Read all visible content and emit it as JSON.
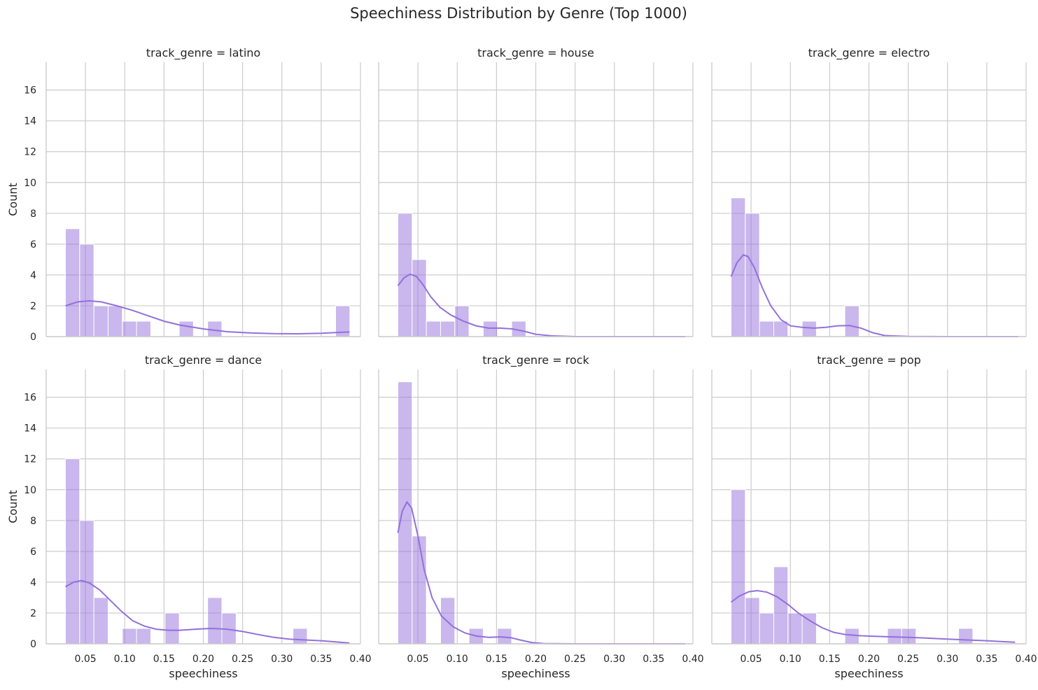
{
  "chart_data": {
    "type": "histogram-facet-grid",
    "title": "Speechiness Distribution by Genre (Top 1000)",
    "xlabel": "speechiness",
    "ylabel": "Count",
    "xlim": [
      0.0,
      0.4
    ],
    "ylim": [
      0,
      17.8
    ],
    "x_ticks": [
      0.05,
      0.1,
      0.15,
      0.2,
      0.25,
      0.3,
      0.35,
      0.4
    ],
    "x_tick_labels": [
      "0.05",
      "0.10",
      "0.15",
      "0.20",
      "0.25",
      "0.30",
      "0.35",
      "0.40"
    ],
    "y_ticks": [
      0,
      2,
      4,
      6,
      8,
      10,
      12,
      14,
      16
    ],
    "y_tick_labels": [
      "0",
      "2",
      "4",
      "6",
      "8",
      "10",
      "12",
      "14",
      "16"
    ],
    "bin_start": 0.0245,
    "bin_width": 0.0181,
    "color": "#9370db",
    "panels": [
      {
        "label": "track_genre = latino",
        "counts": [
          7,
          6,
          2,
          2,
          1,
          1,
          0,
          0,
          1,
          0,
          1,
          0,
          0,
          0,
          0,
          0,
          0,
          0,
          0,
          2
        ],
        "kde": [
          [
            0.0245,
            2.0
          ],
          [
            0.04,
            2.25
          ],
          [
            0.055,
            2.32
          ],
          [
            0.07,
            2.25
          ],
          [
            0.09,
            2.0
          ],
          [
            0.11,
            1.7
          ],
          [
            0.13,
            1.35
          ],
          [
            0.15,
            1.0
          ],
          [
            0.17,
            0.75
          ],
          [
            0.2,
            0.5
          ],
          [
            0.23,
            0.32
          ],
          [
            0.26,
            0.24
          ],
          [
            0.29,
            0.19
          ],
          [
            0.32,
            0.18
          ],
          [
            0.35,
            0.22
          ],
          [
            0.37,
            0.27
          ],
          [
            0.386,
            0.3
          ]
        ]
      },
      {
        "label": "track_genre = house",
        "counts": [
          8,
          5,
          1,
          1,
          2,
          0,
          1,
          0,
          1,
          0,
          0,
          0,
          0,
          0,
          0,
          0,
          0,
          0,
          0,
          0
        ],
        "kde": [
          [
            0.0245,
            3.3
          ],
          [
            0.032,
            3.8
          ],
          [
            0.04,
            4.05
          ],
          [
            0.048,
            3.9
          ],
          [
            0.056,
            3.4
          ],
          [
            0.066,
            2.6
          ],
          [
            0.078,
            1.9
          ],
          [
            0.092,
            1.4
          ],
          [
            0.108,
            1.0
          ],
          [
            0.124,
            0.7
          ],
          [
            0.14,
            0.55
          ],
          [
            0.155,
            0.55
          ],
          [
            0.17,
            0.5
          ],
          [
            0.185,
            0.35
          ],
          [
            0.2,
            0.15
          ],
          [
            0.22,
            0.05
          ],
          [
            0.25,
            0.0
          ],
          [
            0.3,
            0.0
          ],
          [
            0.35,
            0.0
          ],
          [
            0.39,
            0.0
          ]
        ]
      },
      {
        "label": "track_genre = electro",
        "counts": [
          9,
          8,
          1,
          1,
          0,
          1,
          0,
          0,
          2,
          0,
          0,
          0,
          0,
          0,
          0,
          0,
          0,
          0,
          0,
          0
        ],
        "kde": [
          [
            0.0245,
            3.9
          ],
          [
            0.032,
            4.8
          ],
          [
            0.04,
            5.3
          ],
          [
            0.046,
            5.2
          ],
          [
            0.054,
            4.5
          ],
          [
            0.064,
            3.2
          ],
          [
            0.075,
            2.0
          ],
          [
            0.088,
            1.1
          ],
          [
            0.1,
            0.7
          ],
          [
            0.115,
            0.6
          ],
          [
            0.13,
            0.55
          ],
          [
            0.145,
            0.6
          ],
          [
            0.16,
            0.7
          ],
          [
            0.175,
            0.72
          ],
          [
            0.19,
            0.55
          ],
          [
            0.205,
            0.25
          ],
          [
            0.22,
            0.07
          ],
          [
            0.25,
            0.01
          ],
          [
            0.3,
            0.0
          ],
          [
            0.39,
            0.0
          ]
        ]
      },
      {
        "label": "track_genre = dance",
        "counts": [
          12,
          8,
          3,
          0,
          1,
          1,
          0,
          2,
          0,
          0,
          3,
          2,
          0,
          0,
          0,
          0,
          1,
          0,
          0,
          0
        ],
        "kde": [
          [
            0.0245,
            3.7
          ],
          [
            0.035,
            4.0
          ],
          [
            0.045,
            4.1
          ],
          [
            0.055,
            3.95
          ],
          [
            0.068,
            3.5
          ],
          [
            0.082,
            2.8
          ],
          [
            0.096,
            2.1
          ],
          [
            0.11,
            1.5
          ],
          [
            0.125,
            1.15
          ],
          [
            0.14,
            0.95
          ],
          [
            0.155,
            0.88
          ],
          [
            0.17,
            0.88
          ],
          [
            0.19,
            0.95
          ],
          [
            0.21,
            1.0
          ],
          [
            0.23,
            0.95
          ],
          [
            0.25,
            0.8
          ],
          [
            0.27,
            0.6
          ],
          [
            0.29,
            0.42
          ],
          [
            0.31,
            0.3
          ],
          [
            0.33,
            0.25
          ],
          [
            0.35,
            0.2
          ],
          [
            0.37,
            0.12
          ],
          [
            0.386,
            0.05
          ]
        ]
      },
      {
        "label": "track_genre = rock",
        "counts": [
          17,
          7,
          0,
          3,
          0,
          1,
          0,
          1,
          0,
          0,
          0,
          0,
          0,
          0,
          0,
          0,
          0,
          0,
          0,
          0
        ],
        "kde": [
          [
            0.0245,
            7.2
          ],
          [
            0.03,
            8.6
          ],
          [
            0.036,
            9.2
          ],
          [
            0.042,
            8.8
          ],
          [
            0.05,
            7.0
          ],
          [
            0.058,
            4.8
          ],
          [
            0.068,
            3.0
          ],
          [
            0.08,
            1.8
          ],
          [
            0.095,
            1.1
          ],
          [
            0.11,
            0.7
          ],
          [
            0.125,
            0.5
          ],
          [
            0.14,
            0.42
          ],
          [
            0.155,
            0.45
          ],
          [
            0.168,
            0.4
          ],
          [
            0.18,
            0.25
          ],
          [
            0.195,
            0.08
          ],
          [
            0.21,
            0.02
          ],
          [
            0.25,
            0.0
          ],
          [
            0.3,
            0.0
          ],
          [
            0.39,
            0.0
          ]
        ]
      },
      {
        "label": "track_genre = pop",
        "counts": [
          10,
          3,
          2,
          5,
          2,
          2,
          0,
          0,
          1,
          0,
          0,
          1,
          1,
          0,
          0,
          0,
          1,
          0,
          0,
          0
        ],
        "kde": [
          [
            0.0245,
            2.7
          ],
          [
            0.035,
            3.1
          ],
          [
            0.047,
            3.38
          ],
          [
            0.058,
            3.45
          ],
          [
            0.07,
            3.35
          ],
          [
            0.083,
            3.05
          ],
          [
            0.097,
            2.55
          ],
          [
            0.11,
            2.0
          ],
          [
            0.125,
            1.5
          ],
          [
            0.14,
            1.05
          ],
          [
            0.155,
            0.75
          ],
          [
            0.17,
            0.6
          ],
          [
            0.19,
            0.52
          ],
          [
            0.21,
            0.48
          ],
          [
            0.23,
            0.45
          ],
          [
            0.25,
            0.42
          ],
          [
            0.27,
            0.38
          ],
          [
            0.29,
            0.33
          ],
          [
            0.31,
            0.28
          ],
          [
            0.33,
            0.24
          ],
          [
            0.35,
            0.2
          ],
          [
            0.37,
            0.14
          ],
          [
            0.386,
            0.1
          ]
        ]
      }
    ]
  }
}
